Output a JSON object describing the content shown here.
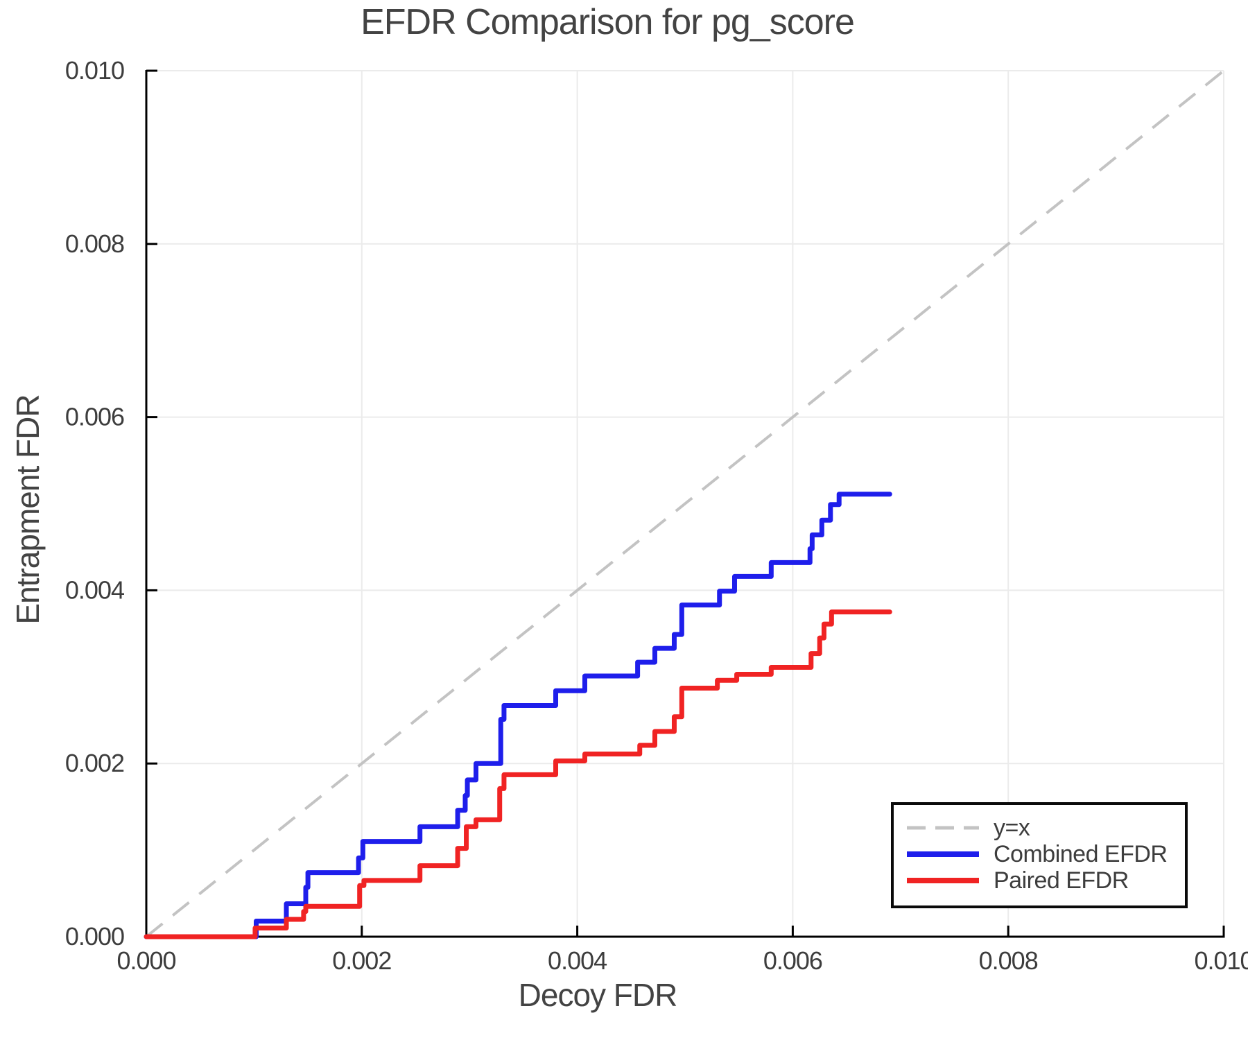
{
  "page": {
    "title": "EFDR Comparison for pg_score"
  },
  "chart_data": {
    "type": "line",
    "title": "EFDR Comparison for pg_score",
    "xlabel": "Decoy FDR",
    "ylabel": "Entrapment FDR",
    "xlim": [
      0.0,
      0.01
    ],
    "ylim": [
      0.0,
      0.01
    ],
    "grid": true,
    "legend_position": "lower right",
    "colors": {
      "grid": "#ebebeb",
      "axis": "#000000",
      "text": "#3d3d3d"
    },
    "xticks": {
      "values": [
        0.0,
        0.002,
        0.004,
        0.006,
        0.008,
        0.01
      ],
      "labels": [
        "0.000",
        "0.002",
        "0.004",
        "0.006",
        "0.008",
        "0.010"
      ]
    },
    "yticks": {
      "values": [
        0.0,
        0.002,
        0.004,
        0.006,
        0.008,
        0.01
      ],
      "labels": [
        "0.000",
        "0.002",
        "0.004",
        "0.006",
        "0.008",
        "0.010"
      ]
    },
    "series": [
      {
        "name": "y=x",
        "type": "line",
        "style": "dashed",
        "color": "#c3c3c3",
        "points": [
          [
            0.0,
            0.0
          ],
          [
            0.01,
            0.01
          ]
        ]
      },
      {
        "name": "Combined EFDR",
        "type": "step",
        "style": "solid",
        "color": "#1e1eeb",
        "start": [
          0.0,
          0.0
        ],
        "end_x": 0.0069,
        "steps": [
          [
            0.00102,
            0.00018
          ],
          [
            0.0013,
            0.00038
          ],
          [
            0.00148,
            0.00057
          ],
          [
            0.0015,
            0.00074
          ],
          [
            0.00197,
            0.00091
          ],
          [
            0.00201,
            0.0011
          ],
          [
            0.00254,
            0.00127
          ],
          [
            0.00289,
            0.00146
          ],
          [
            0.00296,
            0.00163
          ],
          [
            0.00298,
            0.00181
          ],
          [
            0.00306,
            0.002
          ],
          [
            0.00329,
            0.00251
          ],
          [
            0.00332,
            0.00267
          ],
          [
            0.0038,
            0.00284
          ],
          [
            0.00407,
            0.00301
          ],
          [
            0.00456,
            0.00317
          ],
          [
            0.00472,
            0.00333
          ],
          [
            0.0049,
            0.00349
          ],
          [
            0.00497,
            0.00383
          ],
          [
            0.00532,
            0.00399
          ],
          [
            0.00546,
            0.00416
          ],
          [
            0.0058,
            0.00432
          ],
          [
            0.00616,
            0.00448
          ],
          [
            0.00618,
            0.00464
          ],
          [
            0.00627,
            0.00481
          ],
          [
            0.00635,
            0.00499
          ],
          [
            0.00643,
            0.00511
          ]
        ]
      },
      {
        "name": "Paired EFDR",
        "type": "step",
        "style": "solid",
        "color": "#f02323",
        "start": [
          0.0,
          0.0
        ],
        "end_x": 0.0069,
        "steps": [
          [
            0.00101,
            0.0001
          ],
          [
            0.0013,
            0.0002
          ],
          [
            0.00146,
            0.00029
          ],
          [
            0.00148,
            0.00035
          ],
          [
            0.00198,
            0.00059
          ],
          [
            0.00202,
            0.00065
          ],
          [
            0.00254,
            0.00082
          ],
          [
            0.00289,
            0.00102
          ],
          [
            0.00297,
            0.00127
          ],
          [
            0.00306,
            0.00135
          ],
          [
            0.00328,
            0.00171
          ],
          [
            0.00332,
            0.00187
          ],
          [
            0.0038,
            0.00203
          ],
          [
            0.00407,
            0.00211
          ],
          [
            0.00458,
            0.00221
          ],
          [
            0.00472,
            0.00237
          ],
          [
            0.0049,
            0.00254
          ],
          [
            0.00497,
            0.00287
          ],
          [
            0.0053,
            0.00296
          ],
          [
            0.00548,
            0.00303
          ],
          [
            0.0058,
            0.00311
          ],
          [
            0.00617,
            0.00327
          ],
          [
            0.00625,
            0.00345
          ],
          [
            0.00629,
            0.00361
          ],
          [
            0.00636,
            0.00375
          ]
        ]
      }
    ]
  }
}
